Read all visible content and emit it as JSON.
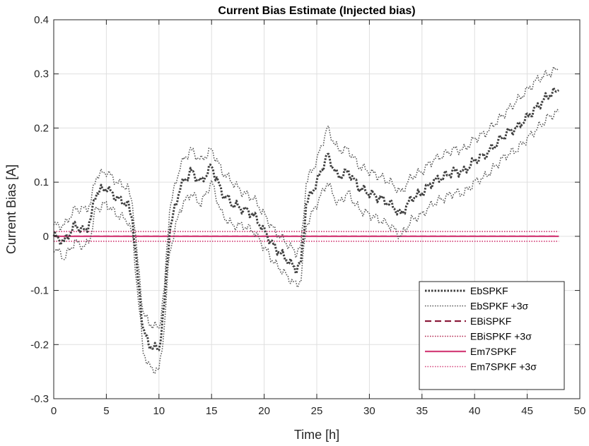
{
  "chart_data": {
    "type": "line",
    "title": "Current Bias Estimate (Injected bias)",
    "xlabel": "Time [h]",
    "ylabel": "Current Bias [A]",
    "xlim": [
      0,
      50
    ],
    "ylim": [
      -0.3,
      0.4
    ],
    "x_ticks": [
      0,
      5,
      10,
      15,
      20,
      25,
      30,
      35,
      40,
      45,
      50
    ],
    "x_tick_labels": [
      "0",
      "5",
      "10",
      "15",
      "20",
      "25",
      "30",
      "35",
      "40",
      "45",
      "50"
    ],
    "y_ticks": [
      -0.3,
      -0.2,
      -0.1,
      0,
      0.1,
      0.2,
      0.3,
      0.4
    ],
    "y_tick_labels": [
      "-0.3",
      "-0.2",
      "-0.1",
      "0",
      "0.1",
      "0.2",
      "0.3",
      "0.4"
    ],
    "grid": true,
    "legend_position": "bottom-right",
    "x": [
      0,
      1,
      2,
      3,
      3.5,
      4,
      5,
      6,
      7,
      7.5,
      8,
      8.5,
      9,
      10,
      10.5,
      11,
      12,
      13,
      14,
      15,
      16,
      17,
      18,
      19,
      20,
      21,
      22,
      23,
      23.5,
      24,
      25,
      26,
      27,
      28,
      29,
      30,
      31,
      32,
      33,
      34,
      35,
      36,
      37,
      38,
      39,
      40,
      41,
      42,
      43,
      44,
      45,
      46,
      47,
      48
    ],
    "series": [
      {
        "name": "EbSPKF",
        "color": "#404040",
        "style": "dotted-thick",
        "values": [
          0,
          -0.01,
          0.02,
          0.01,
          0.03,
          0.08,
          0.09,
          0.07,
          0.06,
          0.03,
          -0.08,
          -0.17,
          -0.2,
          -0.21,
          -0.13,
          0.01,
          0.09,
          0.12,
          0.1,
          0.13,
          0.08,
          0.06,
          0.05,
          0.04,
          0.01,
          -0.02,
          -0.04,
          -0.06,
          -0.05,
          0.06,
          0.1,
          0.15,
          0.11,
          0.12,
          0.09,
          0.08,
          0.07,
          0.06,
          0.04,
          0.07,
          0.08,
          0.1,
          0.11,
          0.12,
          0.12,
          0.14,
          0.15,
          0.17,
          0.19,
          0.2,
          0.22,
          0.24,
          0.26,
          0.27
        ]
      },
      {
        "name": "EbSPKF +3σ",
        "color": "#555555",
        "style": "dotted",
        "upper": [
          0.02,
          0.02,
          0.05,
          0.05,
          0.06,
          0.11,
          0.12,
          0.1,
          0.09,
          0.06,
          -0.05,
          -0.14,
          -0.16,
          -0.17,
          -0.1,
          0.05,
          0.13,
          0.16,
          0.14,
          0.16,
          0.12,
          0.1,
          0.08,
          0.07,
          0.04,
          0.01,
          -0.01,
          -0.03,
          -0.02,
          0.1,
          0.14,
          0.2,
          0.16,
          0.16,
          0.13,
          0.12,
          0.11,
          0.1,
          0.08,
          0.11,
          0.12,
          0.14,
          0.15,
          0.16,
          0.16,
          0.18,
          0.19,
          0.21,
          0.23,
          0.25,
          0.27,
          0.29,
          0.3,
          0.31
        ],
        "lower": [
          -0.02,
          -0.04,
          -0.01,
          -0.02,
          0,
          0.05,
          0.06,
          0.04,
          0.03,
          0,
          -0.11,
          -0.21,
          -0.24,
          -0.25,
          -0.17,
          -0.03,
          0.05,
          0.08,
          0.06,
          0.1,
          0.04,
          0.02,
          0.02,
          0.01,
          -0.02,
          -0.05,
          -0.07,
          -0.09,
          -0.08,
          0.02,
          0.06,
          0.1,
          0.06,
          0.08,
          0.05,
          0.04,
          0.03,
          0.02,
          0,
          0.03,
          0.04,
          0.06,
          0.07,
          0.08,
          0.08,
          0.1,
          0.11,
          0.13,
          0.15,
          0.16,
          0.18,
          0.2,
          0.22,
          0.23
        ]
      },
      {
        "name": "EBiSPKF",
        "color": "#8b1a3a",
        "style": "dashed",
        "constant": 0
      },
      {
        "name": "EBiSPKF +3σ",
        "color": "#b0204a",
        "style": "dotted",
        "upper_constant": 0.009,
        "lower_constant": -0.009
      },
      {
        "name": "Em7SPKF",
        "color": "#d4407a",
        "style": "solid",
        "constant": 0
      },
      {
        "name": "Em7SPKF +3σ",
        "color": "#d4407a",
        "style": "dotted",
        "upper_constant": 0.009,
        "lower_constant": -0.009
      }
    ]
  }
}
